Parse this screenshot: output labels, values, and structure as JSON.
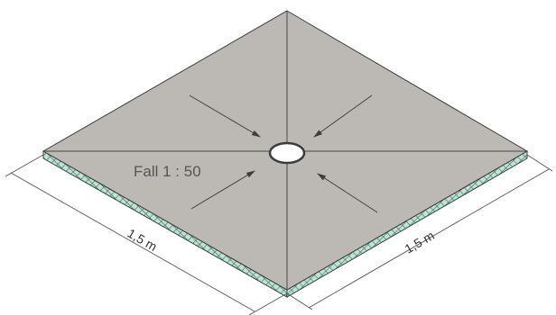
{
  "slope_label": "Fall 1 : 50",
  "dimension_left": "1,5 m",
  "dimension_right": "1,5 m",
  "colors": {
    "top_surface": "#bcb8b3",
    "edge_fill": "#bfe3d6",
    "hatch": "#3a6a58",
    "stroke": "#3c3c3c",
    "dimension_line": "#555555"
  }
}
